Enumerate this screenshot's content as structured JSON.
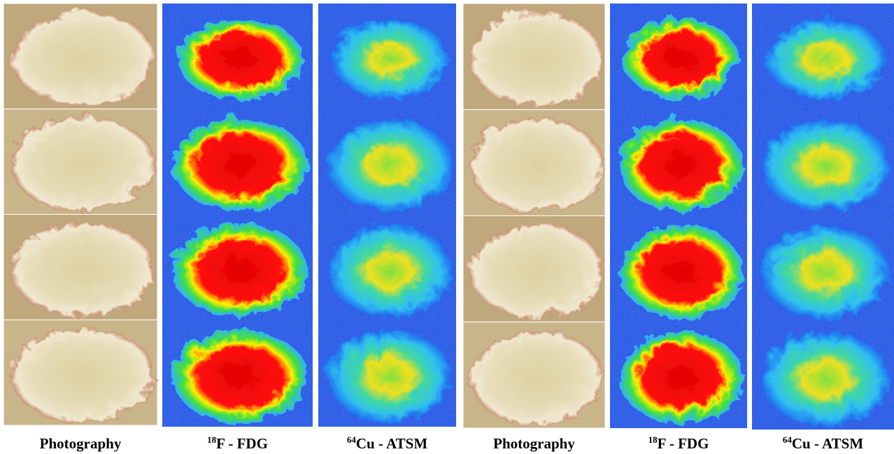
{
  "panels": [
    {
      "caption": {
        "text": "Photography"
      }
    },
    {
      "caption": {
        "sup": "18",
        "text": "F - FDG"
      }
    },
    {
      "caption": {
        "sup": "64",
        "text": "Cu - ATSM"
      }
    },
    {
      "caption": {
        "text": "Photography"
      }
    },
    {
      "caption": {
        "sup": "18",
        "text": "F - FDG"
      }
    },
    {
      "caption": {
        "sup": "64",
        "text": "Cu - ATSM"
      }
    }
  ]
}
